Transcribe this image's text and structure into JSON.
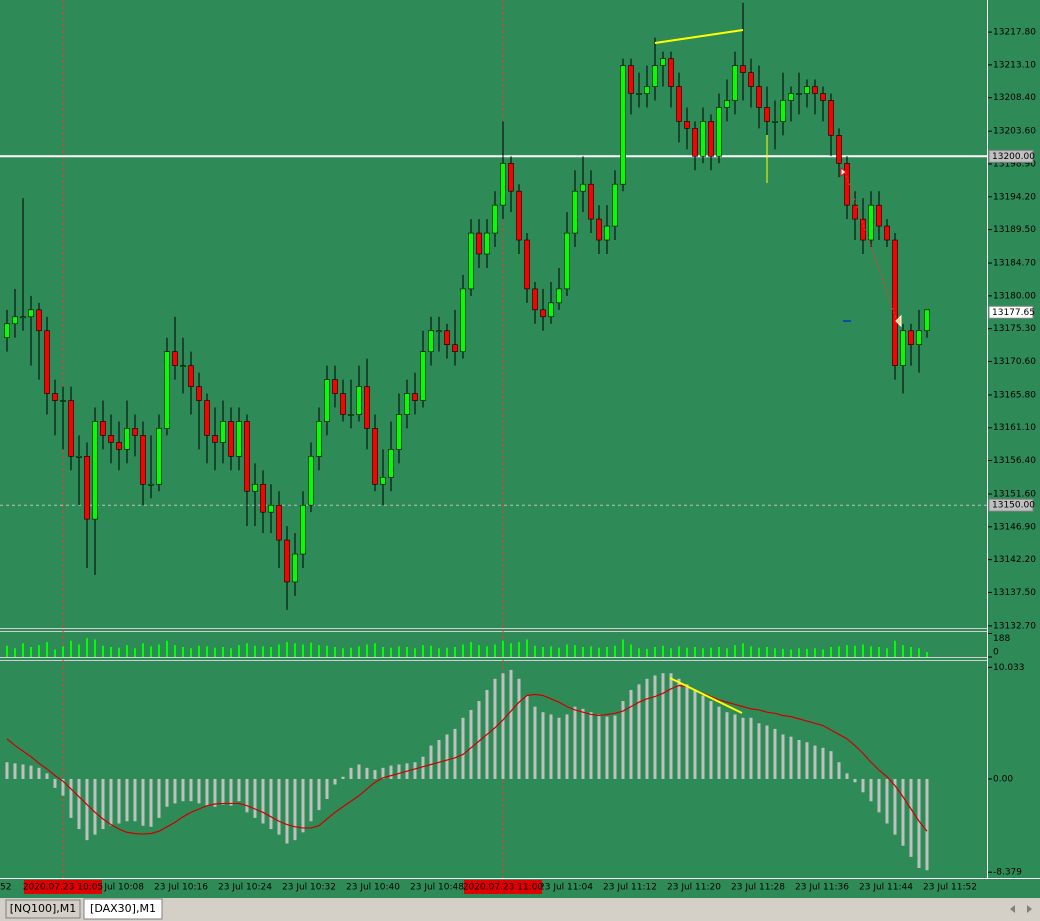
{
  "chart_data": [
    {
      "type": "candlestick",
      "bull_color": "#00ff00",
      "bear_color": "#ff0000",
      "ylim": [
        13132.4,
        13222.4
      ],
      "yticks": [
        {
          "value": 13217.8,
          "label": "13217.80"
        },
        {
          "value": 13213.1,
          "label": "13213.10"
        },
        {
          "value": 13208.4,
          "label": "13208.40"
        },
        {
          "value": 13203.6,
          "label": "13203.60"
        },
        {
          "value": 13198.9,
          "label": "13198.90"
        },
        {
          "value": 13194.2,
          "label": "13194.20"
        },
        {
          "value": 13189.5,
          "label": "13189.50"
        },
        {
          "value": 13184.7,
          "label": "13184.70"
        },
        {
          "value": 13180,
          "label": "13180.00"
        },
        {
          "value": 13175.3,
          "label": "13175.30"
        },
        {
          "value": 13170.6,
          "label": "13170.60"
        },
        {
          "value": 13165.8,
          "label": "13165.80"
        },
        {
          "value": 13161.1,
          "label": "13161.10"
        },
        {
          "value": 13156.4,
          "label": "13156.40"
        },
        {
          "value": 13151.6,
          "label": "13151.60"
        },
        {
          "value": 13146.9,
          "label": "13146.90"
        },
        {
          "value": 13142.2,
          "label": "13142.20"
        },
        {
          "value": 13137.5,
          "label": "13137.50"
        },
        {
          "value": 13132.7,
          "label": "13132.70"
        }
      ],
      "hlines": [
        {
          "value": 13200,
          "label": "13200.00",
          "color": "#ffffff",
          "dashed": false
        },
        {
          "value": 13150,
          "label": "13150.00",
          "color": "#c0c0c0",
          "dashed": true
        }
      ],
      "bid": 13177.65,
      "candles": [
        [
          13174,
          13178,
          13172,
          13176
        ],
        [
          13176,
          13181,
          13174,
          13177
        ],
        [
          13177,
          13194,
          13175,
          13177
        ],
        [
          13177,
          13180,
          13170,
          13178
        ],
        [
          13178,
          13179,
          13168,
          13175
        ],
        [
          13175,
          13177,
          13163,
          13166
        ],
        [
          13166,
          13168,
          13160,
          13165
        ],
        [
          13165,
          13167,
          13158,
          13165
        ],
        [
          13165,
          13167,
          13155,
          13157
        ],
        [
          13157,
          13160,
          13150,
          13157
        ],
        [
          13157,
          13159,
          13141,
          13148
        ],
        [
          13148,
          13164,
          13140,
          13162
        ],
        [
          13162,
          13165,
          13158,
          13160
        ],
        [
          13160,
          13163,
          13156,
          13159
        ],
        [
          13159,
          13162,
          13155,
          13158
        ],
        [
          13158,
          13165,
          13156,
          13161
        ],
        [
          13161,
          13163,
          13157,
          13160
        ],
        [
          13160,
          13162,
          13150,
          13153
        ],
        [
          13153,
          13160,
          13151,
          13153
        ],
        [
          13153,
          13163,
          13152,
          13161
        ],
        [
          13161,
          13174,
          13160,
          13172
        ],
        [
          13172,
          13177,
          13168,
          13170
        ],
        [
          13170,
          13174,
          13166,
          13170
        ],
        [
          13170,
          13172,
          13163,
          13167
        ],
        [
          13167,
          13169,
          13158,
          13165
        ],
        [
          13165,
          13166,
          13156,
          13160
        ],
        [
          13160,
          13164,
          13155,
          13159
        ],
        [
          13159,
          13165,
          13156,
          13162
        ],
        [
          13162,
          13164,
          13155,
          13157
        ],
        [
          13157,
          13164,
          13155,
          13162
        ],
        [
          13162,
          13163,
          13147,
          13152
        ],
        [
          13152,
          13156,
          13147,
          13153
        ],
        [
          13153,
          13155,
          13146,
          13149
        ],
        [
          13149,
          13153,
          13146,
          13150
        ],
        [
          13150,
          13152,
          13141,
          13145
        ],
        [
          13145,
          13147,
          13135,
          13139
        ],
        [
          13139,
          13146,
          13137,
          13143
        ],
        [
          13143,
          13152,
          13141,
          13150
        ],
        [
          13150,
          13159,
          13149,
          13157
        ],
        [
          13157,
          13164,
          13155,
          13162
        ],
        [
          13162,
          13170,
          13160,
          13168
        ],
        [
          13168,
          13170,
          13164,
          13166
        ],
        [
          13166,
          13168,
          13162,
          13163
        ],
        [
          13163,
          13168,
          13161,
          13163
        ],
        [
          13163,
          13170,
          13162,
          13167
        ],
        [
          13167,
          13171,
          13158,
          13161
        ],
        [
          13161,
          13163,
          13152,
          13153
        ],
        [
          13153,
          13158,
          13150,
          13154
        ],
        [
          13154,
          13162,
          13152,
          13158
        ],
        [
          13158,
          13166,
          13156,
          13163
        ],
        [
          13163,
          13168,
          13161,
          13166
        ],
        [
          13166,
          13169,
          13163,
          13165
        ],
        [
          13165,
          13175,
          13164,
          13172
        ],
        [
          13172,
          13177,
          13170,
          13175
        ],
        [
          13175,
          13177,
          13172,
          13175
        ],
        [
          13175,
          13176,
          13171,
          13173
        ],
        [
          13173,
          13178,
          13170,
          13172
        ],
        [
          13172,
          13183,
          13171,
          13181
        ],
        [
          13181,
          13191,
          13180,
          13189
        ],
        [
          13189,
          13191,
          13184,
          13186
        ],
        [
          13186,
          13191,
          13184,
          13189
        ],
        [
          13189,
          13195,
          13187,
          13193
        ],
        [
          13193,
          13205,
          13191,
          13199
        ],
        [
          13199,
          13200,
          13192,
          13195
        ],
        [
          13195,
          13196,
          13186,
          13188
        ],
        [
          13188,
          13189,
          13179,
          13181
        ],
        [
          13181,
          13182,
          13176,
          13178
        ],
        [
          13178,
          13181,
          13175,
          13177
        ],
        [
          13177,
          13182,
          13176,
          13179
        ],
        [
          13179,
          13184,
          13178,
          13181
        ],
        [
          13181,
          13192,
          13180,
          13189
        ],
        [
          13189,
          13198,
          13187,
          13195
        ],
        [
          13195,
          13200,
          13192,
          13196
        ],
        [
          13196,
          13198,
          13189,
          13191
        ],
        [
          13191,
          13193,
          13186,
          13188
        ],
        [
          13188,
          13193,
          13186,
          13190
        ],
        [
          13190,
          13198,
          13188,
          13196
        ],
        [
          13196,
          13214,
          13195,
          13213
        ],
        [
          13213,
          13214,
          13206,
          13209
        ],
        [
          13209,
          13212,
          13207,
          13209
        ],
        [
          13209,
          13213,
          13207,
          13210
        ],
        [
          13210,
          13217,
          13208,
          13213
        ],
        [
          13213,
          13215,
          13210,
          13214
        ],
        [
          13214,
          13215,
          13207,
          13210
        ],
        [
          13210,
          13212,
          13202,
          13205
        ],
        [
          13205,
          13207,
          13201,
          13204
        ],
        [
          13204,
          13205,
          13198,
          13200
        ],
        [
          13200,
          13207,
          13199,
          13205
        ],
        [
          13205,
          13206,
          13198,
          13200
        ],
        [
          13200,
          13209,
          13199,
          13207
        ],
        [
          13207,
          13211,
          13205,
          13208
        ],
        [
          13208,
          13215,
          13206,
          13213
        ],
        [
          13213,
          13222,
          13208,
          13212
        ],
        [
          13212,
          13214,
          13207,
          13210
        ],
        [
          13210,
          13213,
          13204,
          13207
        ],
        [
          13207,
          13210,
          13202,
          13205
        ],
        [
          13205,
          13208,
          13201,
          13205
        ],
        [
          13205,
          13212,
          13203,
          13208
        ],
        [
          13208,
          13210,
          13205,
          13209
        ],
        [
          13209,
          13212,
          13206,
          13209
        ],
        [
          13209,
          13211,
          13207,
          13210
        ],
        [
          13210,
          13211,
          13206,
          13209
        ],
        [
          13209,
          13210,
          13205,
          13208
        ],
        [
          13208,
          13209,
          13200,
          13203
        ],
        [
          13203,
          13204,
          13197,
          13199
        ],
        [
          13199,
          13200,
          13191,
          13193
        ],
        [
          13193,
          13195,
          13188,
          13191
        ],
        [
          13191,
          13194,
          13186,
          13188
        ],
        [
          13188,
          13195,
          13187,
          13193
        ],
        [
          13193,
          13195,
          13188,
          13190
        ],
        [
          13190,
          13191,
          13187,
          13188
        ],
        [
          13188,
          13189,
          13168,
          13170
        ],
        [
          13170,
          13176,
          13166,
          13175
        ],
        [
          13175,
          13176,
          13170,
          13173
        ],
        [
          13173,
          13178,
          13169,
          13175
        ],
        [
          13175,
          13178,
          13174,
          13178
        ]
      ]
    },
    {
      "type": "volume",
      "color": "#00ff00",
      "ylim": [
        0,
        200
      ],
      "yticks": [
        188,
        0
      ],
      "values": [
        90,
        70,
        110,
        80,
        95,
        120,
        60,
        85,
        130,
        100,
        150,
        140,
        90,
        80,
        75,
        95,
        70,
        110,
        85,
        100,
        130,
        95,
        80,
        70,
        90,
        85,
        75,
        80,
        70,
        95,
        110,
        90,
        85,
        80,
        100,
        120,
        110,
        100,
        115,
        95,
        90,
        80,
        70,
        75,
        85,
        100,
        110,
        80,
        75,
        85,
        80,
        70,
        95,
        90,
        70,
        75,
        80,
        100,
        120,
        95,
        85,
        100,
        130,
        110,
        120,
        140,
        90,
        80,
        85,
        75,
        100,
        95,
        80,
        85,
        75,
        80,
        90,
        140,
        100,
        70,
        65,
        80,
        90,
        70,
        85,
        75,
        80,
        70,
        75,
        80,
        70,
        95,
        110,
        85,
        75,
        80,
        70,
        65,
        60,
        70,
        65,
        70,
        60,
        80,
        85,
        95,
        90,
        100,
        85,
        80,
        70,
        130,
        95,
        80,
        70,
        40
      ]
    },
    {
      "type": "macd",
      "ylim": [
        -8.9,
        10.6
      ],
      "yticks": [
        10.033,
        {
          "value": 0,
          "label": "0.00"
        },
        -8.379
      ],
      "histogram": {
        "color": "#c0c0c0",
        "values": [
          1.5,
          1.4,
          1.3,
          1.2,
          1.0,
          0.5,
          -0.8,
          -1.5,
          -3.5,
          -4.5,
          -5.5,
          -5.0,
          -4.5,
          -4.2,
          -4.0,
          -3.8,
          -3.8,
          -4.2,
          -4.3,
          -3.5,
          -2.5,
          -2.2,
          -2.0,
          -2.0,
          -2.2,
          -2.4,
          -2.5,
          -2.3,
          -2.4,
          -2.0,
          -3.0,
          -3.5,
          -4.0,
          -4.5,
          -5.0,
          -5.8,
          -5.5,
          -4.8,
          -3.8,
          -2.8,
          -1.8,
          -0.5,
          0.2,
          1.0,
          1.3,
          1.0,
          0.8,
          1.0,
          1.2,
          1.3,
          1.4,
          1.5,
          2.0,
          3.0,
          3.5,
          4.0,
          4.5,
          5.5,
          6.2,
          7.0,
          8.0,
          9.0,
          9.5,
          9.8,
          9.0,
          7.5,
          6.5,
          6.0,
          5.8,
          5.5,
          5.8,
          6.5,
          6.3,
          6.0,
          5.8,
          5.6,
          5.7,
          7.0,
          8.0,
          8.5,
          9.0,
          9.3,
          9.5,
          9.5,
          9.0,
          8.5,
          8.0,
          7.5,
          7.0,
          6.5,
          6.0,
          5.8,
          5.5,
          5.5,
          5.0,
          4.8,
          4.5,
          4.0,
          3.8,
          3.5,
          3.3,
          3.0,
          2.8,
          2.5,
          1.5,
          0.5,
          -0.3,
          -1.2,
          -2.0,
          -3.0,
          -4.0,
          -5.0,
          -6.0,
          -7.0,
          -8.0,
          -8.2
        ]
      },
      "signal": {
        "color": "#cc0000",
        "values": [
          3.6,
          3.0,
          2.5,
          2.0,
          1.4,
          0.9,
          0.3,
          -0.2,
          -0.9,
          -1.6,
          -2.3,
          -3.0,
          -3.6,
          -4.1,
          -4.5,
          -4.8,
          -4.9,
          -4.95,
          -4.9,
          -4.7,
          -4.3,
          -3.9,
          -3.4,
          -3.0,
          -2.7,
          -2.4,
          -2.25,
          -2.2,
          -2.2,
          -2.2,
          -2.4,
          -2.7,
          -3.0,
          -3.4,
          -3.8,
          -4.1,
          -4.3,
          -4.4,
          -4.4,
          -4.2,
          -3.6,
          -3.0,
          -2.5,
          -2.0,
          -1.5,
          -0.9,
          -0.3,
          0.1,
          0.3,
          0.5,
          0.7,
          0.9,
          1.1,
          1.3,
          1.5,
          1.7,
          1.9,
          2.2,
          2.8,
          3.4,
          4.0,
          4.6,
          5.3,
          6.1,
          6.9,
          7.5,
          7.6,
          7.5,
          7.2,
          6.9,
          6.5,
          6.2,
          6.0,
          5.8,
          5.7,
          5.8,
          5.9,
          6.1,
          6.5,
          6.9,
          7.2,
          7.4,
          7.7,
          8.1,
          8.4,
          8.3,
          8.0,
          7.7,
          7.4,
          7.1,
          6.9,
          6.7,
          6.5,
          6.3,
          6.2,
          6.0,
          5.9,
          5.7,
          5.6,
          5.4,
          5.2,
          5.0,
          4.8,
          4.4,
          4.0,
          3.6,
          3.0,
          2.3,
          1.5,
          0.8,
          0.2,
          -0.6,
          -1.6,
          -2.7,
          -3.8,
          -4.7
        ]
      }
    }
  ],
  "time_axis": {
    "labels": [
      "52",
      "23 Jul 10:08",
      "23 Jul 10:16",
      "23 Jul 10:24",
      "23 Jul 10:32",
      "23 Jul 10:40",
      "23 Jul 10:48",
      "23 Jul 11:04",
      "23 Jul 11:12",
      "23 Jul 11:20",
      "23 Jul 11:28",
      "23 Jul 11:36",
      "23 Jul 11:44",
      "23 Jul 11:52"
    ],
    "cursor_labels": [
      "2020.07.23 10:05",
      "2020.07.23 11:00"
    ]
  },
  "tabs": [
    "[NQ100],M1",
    "[DAX30],M1"
  ]
}
